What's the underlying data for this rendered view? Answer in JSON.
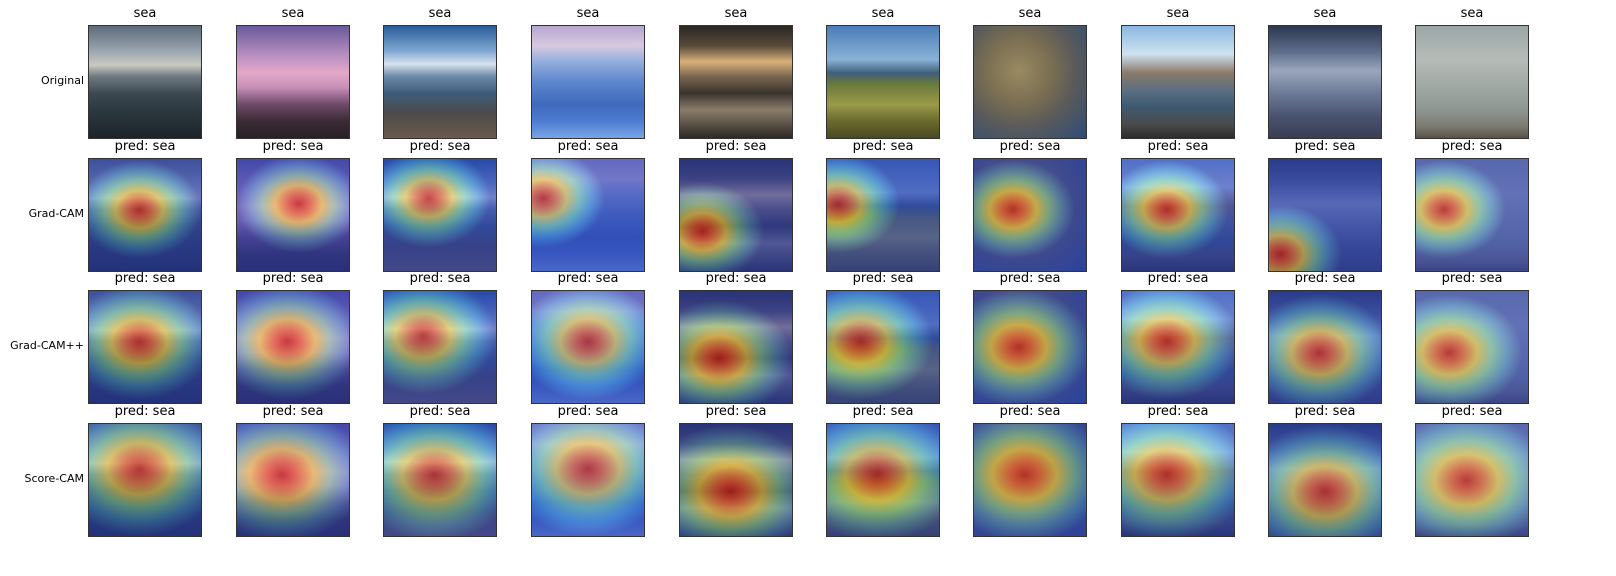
{
  "figure": {
    "rows": [
      {
        "label": "Original",
        "overlay": "none"
      },
      {
        "label": "Grad-CAM",
        "overlay": "gradcam"
      },
      {
        "label": "Grad-CAM++",
        "overlay": "gradcampp"
      },
      {
        "label": "Score-CAM",
        "overlay": "scorecam"
      }
    ],
    "columns": [
      {
        "gt_title": "sea",
        "pred_title": "pred: sea",
        "scene": "sunset-waves"
      },
      {
        "gt_title": "sea",
        "pred_title": "pred: sea",
        "scene": "pink-rocky-shore"
      },
      {
        "gt_title": "sea",
        "pred_title": "pred: sea",
        "scene": "pier-blue-sky"
      },
      {
        "gt_title": "sea",
        "pred_title": "pred: sea",
        "scene": "blue-ice"
      },
      {
        "gt_title": "sea",
        "pred_title": "pred: sea",
        "scene": "golden-clouds"
      },
      {
        "gt_title": "sea",
        "pred_title": "pred: sea",
        "scene": "grassy-coast"
      },
      {
        "gt_title": "sea",
        "pred_title": "pred: sea",
        "scene": "coral-reef"
      },
      {
        "gt_title": "sea",
        "pred_title": "pred: sea",
        "scene": "rocky-bay"
      },
      {
        "gt_title": "sea",
        "pred_title": "pred: sea",
        "scene": "dusky-sky"
      },
      {
        "gt_title": "sea",
        "pred_title": "pred: sea",
        "scene": "grey-groyne"
      }
    ]
  }
}
